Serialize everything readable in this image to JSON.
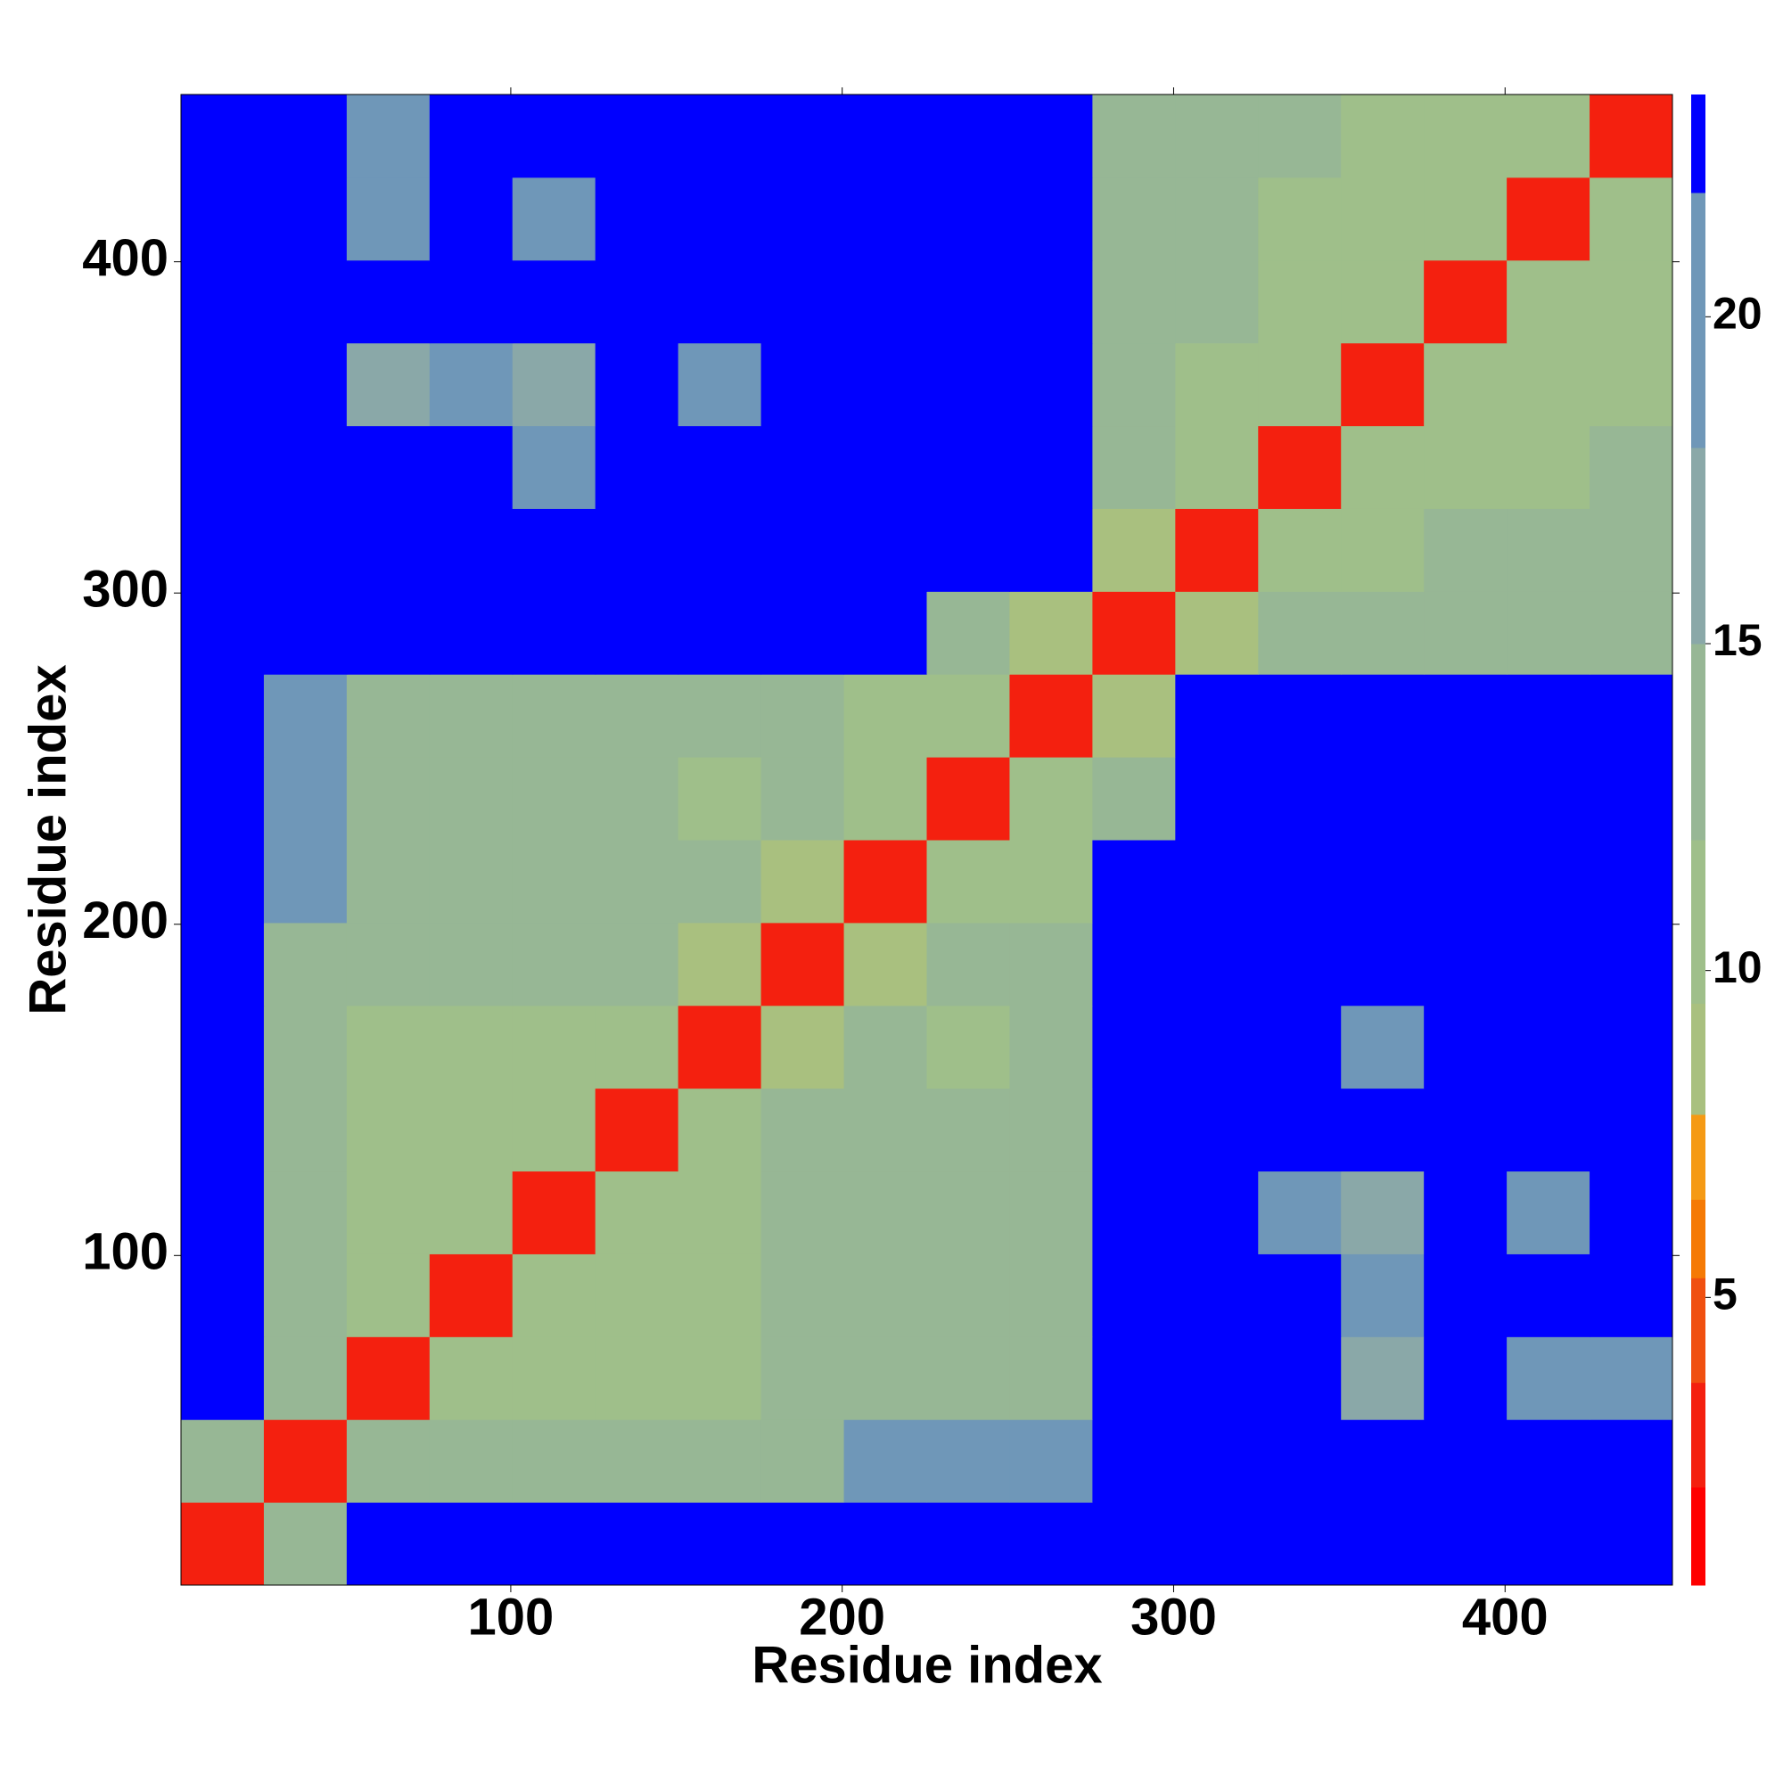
{
  "chart_data": {
    "type": "heatmap",
    "xlabel": "Residue index",
    "ylabel": "Residue index",
    "x_edges": [
      0.5,
      25.5,
      50.5,
      75.5,
      100.5,
      125.5,
      150.5,
      175.5,
      200.5,
      225.5,
      250.5,
      275.5,
      300.5,
      325.5,
      350.5,
      375.5,
      400.5,
      425.5,
      450.5
    ],
    "y_edges": [
      0.5,
      25.5,
      50.5,
      75.5,
      100.5,
      125.5,
      150.5,
      175.5,
      200.5,
      225.5,
      250.5,
      275.5,
      300.5,
      325.5,
      350.5,
      375.5,
      400.5,
      425.5,
      450.5
    ],
    "z": [
      [
        3,
        12,
        23,
        23,
        23,
        23,
        23,
        23,
        23,
        23,
        23,
        23,
        23,
        23,
        23,
        23,
        23,
        23
      ],
      [
        12,
        3,
        12,
        14,
        14,
        14,
        14,
        14,
        18,
        18,
        18,
        23,
        23,
        23,
        23,
        23,
        23,
        23
      ],
      [
        23,
        12,
        3,
        10,
        11,
        11,
        11,
        14,
        12,
        12,
        12,
        23,
        23,
        23,
        16,
        23,
        18,
        18
      ],
      [
        23,
        14,
        10,
        3,
        10,
        11,
        11,
        14,
        12,
        12,
        12,
        23,
        23,
        23,
        18,
        23,
        23,
        23
      ],
      [
        23,
        14,
        11,
        10,
        3,
        10,
        11,
        14,
        12,
        12,
        12,
        23,
        23,
        18,
        16,
        23,
        18,
        23
      ],
      [
        23,
        14,
        11,
        11,
        10,
        3,
        10,
        14,
        12,
        13,
        14,
        23,
        23,
        23,
        23,
        23,
        23,
        23
      ],
      [
        23,
        14,
        11,
        11,
        11,
        10,
        3,
        9,
        12,
        11,
        12,
        23,
        23,
        23,
        18,
        23,
        23,
        23
      ],
      [
        23,
        14,
        14,
        14,
        14,
        14,
        9,
        3,
        8,
        14,
        14,
        23,
        23,
        23,
        23,
        23,
        23,
        23
      ],
      [
        23,
        18,
        12,
        12,
        12,
        12,
        12,
        8,
        3,
        10,
        11,
        23,
        23,
        23,
        23,
        23,
        23,
        23
      ],
      [
        23,
        18,
        12,
        12,
        12,
        13,
        11,
        14,
        10,
        3,
        10,
        14,
        23,
        23,
        23,
        23,
        23,
        23
      ],
      [
        23,
        18,
        12,
        12,
        12,
        14,
        12,
        14,
        11,
        10,
        3,
        9,
        23,
        23,
        23,
        23,
        23,
        23
      ],
      [
        23,
        23,
        23,
        23,
        23,
        23,
        23,
        23,
        23,
        14,
        9,
        3,
        9,
        12,
        14,
        14,
        14,
        14
      ],
      [
        23,
        23,
        23,
        23,
        23,
        23,
        23,
        23,
        23,
        23,
        23,
        9,
        3,
        10,
        11,
        12,
        12,
        13
      ],
      [
        23,
        23,
        23,
        23,
        18,
        23,
        23,
        23,
        23,
        23,
        23,
        12,
        10,
        3,
        10,
        11,
        11,
        12
      ],
      [
        23,
        23,
        16,
        18,
        16,
        23,
        18,
        23,
        23,
        23,
        23,
        14,
        11,
        10,
        3,
        10,
        11,
        11
      ],
      [
        23,
        23,
        23,
        23,
        23,
        23,
        23,
        23,
        23,
        23,
        23,
        14,
        12,
        11,
        10,
        3,
        10,
        11
      ],
      [
        23,
        23,
        18,
        23,
        18,
        23,
        23,
        23,
        23,
        23,
        23,
        14,
        12,
        11,
        11,
        10,
        3,
        10
      ],
      [
        23,
        23,
        18,
        23,
        23,
        23,
        23,
        23,
        23,
        23,
        23,
        14,
        13,
        12,
        11,
        11,
        10,
        3
      ]
    ],
    "xlim": [
      0.5,
      450.5
    ],
    "ylim": [
      0.5,
      450.5
    ],
    "xticks": [
      100,
      200,
      300,
      400
    ],
    "yticks": [
      100,
      200,
      300,
      400
    ],
    "colorbar": {
      "levels": [
        0.6,
        2.1,
        3.7,
        5.3,
        6.5,
        7.8,
        9.5,
        12,
        15,
        18,
        21.9,
        23.4
      ],
      "colors": [
        "#ff0000",
        "#f4200f",
        "#f05010",
        "#f57a05",
        "#f59a15",
        "#a9c07f",
        "#9fbf8a",
        "#97b795",
        "#8aa8a8",
        "#6f97b8",
        "#0000ff"
      ],
      "ticks": [
        5,
        10,
        15,
        20
      ]
    }
  }
}
